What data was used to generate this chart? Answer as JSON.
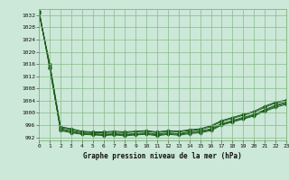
{
  "title": "Graphe pression niveau de la mer (hPa)",
  "background_color": "#cce8d8",
  "grid_color": "#88bb88",
  "line_color": "#1a5c1a",
  "marker_color": "#1a5c1a",
  "xlim": [
    0,
    23
  ],
  "ylim": [
    991,
    1034
  ],
  "yticks": [
    992,
    996,
    1000,
    1004,
    1008,
    1012,
    1016,
    1020,
    1024,
    1028,
    1032
  ],
  "xticks": [
    0,
    1,
    2,
    3,
    4,
    5,
    6,
    7,
    8,
    9,
    10,
    11,
    12,
    13,
    14,
    15,
    16,
    17,
    18,
    19,
    20,
    21,
    22,
    23
  ],
  "series": [
    [
      1033.5,
      1014.5,
      994.8,
      994.0,
      993.5,
      993.2,
      993.0,
      993.2,
      993.0,
      993.2,
      993.5,
      993.0,
      993.5,
      993.2,
      993.8,
      994.0,
      994.8,
      996.5,
      997.5,
      998.5,
      999.5,
      1001.0,
      1002.5,
      1003.5
    ],
    [
      1033.0,
      1015.0,
      994.2,
      993.5,
      993.0,
      992.8,
      992.6,
      992.8,
      992.5,
      992.8,
      993.0,
      992.5,
      993.0,
      992.7,
      993.2,
      993.5,
      994.2,
      996.0,
      997.0,
      998.0,
      999.0,
      1000.5,
      1001.8,
      1002.8
    ],
    [
      1032.5,
      1015.8,
      995.2,
      994.5,
      993.8,
      993.5,
      993.5,
      993.7,
      993.5,
      993.8,
      994.0,
      993.5,
      994.0,
      993.8,
      994.2,
      994.5,
      995.5,
      997.2,
      998.2,
      999.2,
      1000.2,
      1001.8,
      1003.2,
      1004.0
    ],
    [
      1033.2,
      1015.2,
      994.5,
      993.8,
      993.2,
      993.0,
      992.8,
      993.0,
      992.8,
      993.0,
      993.2,
      992.8,
      993.2,
      993.0,
      993.5,
      993.8,
      994.5,
      996.2,
      997.2,
      998.2,
      999.2,
      1000.8,
      1002.2,
      1003.2
    ],
    [
      1032.8,
      1016.0,
      995.5,
      994.8,
      994.0,
      993.8,
      993.8,
      994.0,
      993.8,
      994.0,
      994.2,
      993.8,
      994.2,
      994.0,
      994.5,
      994.8,
      995.8,
      997.5,
      998.5,
      999.5,
      1000.5,
      1002.2,
      1003.5,
      1004.2
    ]
  ]
}
